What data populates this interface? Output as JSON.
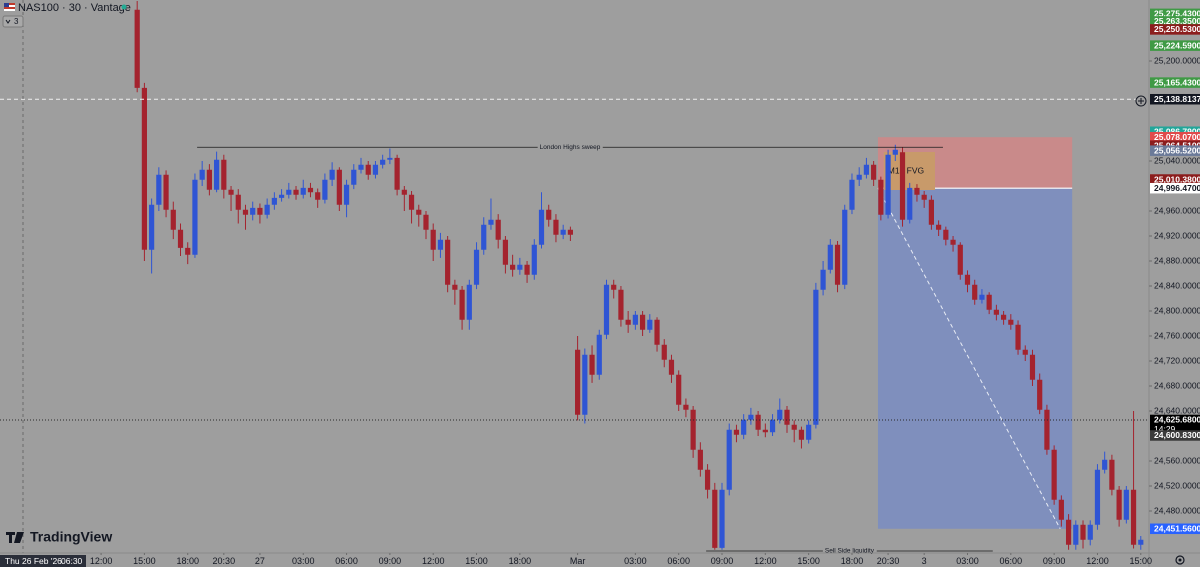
{
  "header": {
    "symbol": "NAS100 · 30 · Vantage",
    "indicator_count": "3"
  },
  "footer": {
    "cursor_date": "Thu 26 Feb '26",
    "cursor_time": "06:30",
    "brand": "TradingView"
  },
  "chart_data": {
    "type": "candlestick",
    "up_color": "#2f55d4",
    "down_color": "#a4232e",
    "xlim": [
      0,
      159
    ],
    "ylim": [
      24412.8,
      25297.6
    ],
    "xticks": [
      {
        "value": 14,
        "label": "12:00"
      },
      {
        "value": 20,
        "label": "15:00"
      },
      {
        "value": 26,
        "label": "18:00"
      },
      {
        "value": 31,
        "label": "20:30"
      },
      {
        "value": 36,
        "label": "27"
      },
      {
        "value": 42,
        "label": "03:00"
      },
      {
        "value": 48,
        "label": "06:00"
      },
      {
        "value": 54,
        "label": "09:00"
      },
      {
        "value": 60,
        "label": "12:00"
      },
      {
        "value": 66,
        "label": "15:00"
      },
      {
        "value": 72,
        "label": "18:00"
      },
      {
        "value": 80,
        "label": "Mar"
      },
      {
        "value": 88,
        "label": "03:00"
      },
      {
        "value": 94,
        "label": "06:00"
      },
      {
        "value": 100,
        "label": "09:00"
      },
      {
        "value": 106,
        "label": "12:00"
      },
      {
        "value": 112,
        "label": "15:00"
      },
      {
        "value": 118,
        "label": "18:00"
      },
      {
        "value": 123,
        "label": "20:30"
      },
      {
        "value": 128,
        "label": "3"
      },
      {
        "value": 134,
        "label": "03:00"
      },
      {
        "value": 140,
        "label": "06:00"
      },
      {
        "value": 146,
        "label": "09:00"
      },
      {
        "value": 152,
        "label": "12:00"
      },
      {
        "value": 158,
        "label": "15:00"
      }
    ],
    "yticks": [
      {
        "value": 25200,
        "label": "25,200.0000"
      },
      {
        "value": 25040,
        "label": "25,040.0000"
      },
      {
        "value": 24960,
        "label": "24,960.0000"
      },
      {
        "value": 24920,
        "label": "24,920.0000"
      },
      {
        "value": 24880,
        "label": "24,880.0000"
      },
      {
        "value": 24840,
        "label": "24,840.0000"
      },
      {
        "value": 24800,
        "label": "24,800.0000"
      },
      {
        "value": 24760,
        "label": "24,760.0000"
      },
      {
        "value": 24720,
        "label": "24,720.0000"
      },
      {
        "value": 24680,
        "label": "24,680.0000"
      },
      {
        "value": 24640,
        "label": "24,640.0000"
      },
      {
        "value": 24560,
        "label": "24,560.0000"
      },
      {
        "value": 24520,
        "label": "24,520.0000"
      },
      {
        "value": 24480,
        "label": "24,480.0000"
      }
    ],
    "x": [
      19,
      20,
      21,
      22,
      23,
      24,
      25,
      26,
      27,
      28,
      29,
      30,
      31,
      32,
      33,
      34,
      35,
      36,
      37,
      38,
      39,
      40,
      41,
      42,
      43,
      44,
      45,
      46,
      47,
      48,
      49,
      50,
      51,
      52,
      53,
      54,
      55,
      56,
      57,
      58,
      59,
      60,
      61,
      62,
      63,
      64,
      65,
      66,
      67,
      68,
      69,
      70,
      71,
      72,
      73,
      74,
      75,
      76,
      77,
      78,
      79,
      80,
      81,
      82,
      83,
      84,
      85,
      86,
      87,
      88,
      89,
      90,
      91,
      92,
      93,
      94,
      95,
      96,
      97,
      98,
      99,
      100,
      101,
      102,
      103,
      104,
      105,
      106,
      107,
      108,
      109,
      110,
      111,
      112,
      113,
      114,
      115,
      116,
      117,
      118,
      119,
      120,
      121,
      122,
      123,
      124,
      125,
      126,
      127,
      128,
      129,
      130,
      131,
      132,
      133,
      134,
      135,
      136,
      137,
      138,
      139,
      140,
      141,
      142,
      143,
      144,
      145,
      146,
      147,
      148,
      149,
      150,
      151,
      152,
      153,
      154,
      155,
      156,
      157,
      158
    ],
    "open": [
      25282,
      25157,
      24898,
      24970,
      25018,
      24962,
      24930,
      24901,
      24890,
      25010,
      25026,
      24994,
      25042,
      24994,
      24986,
      24962,
      24954,
      24965,
      24954,
      24970,
      24981,
      24986,
      24994,
      24986,
      24997,
      24990,
      24978,
      25010,
      25026,
      24970,
      25002,
      25026,
      25034,
      25018,
      25034,
      25042,
      25045,
      24994,
      24986,
      24962,
      24954,
      24930,
      24898,
      24914,
      24842,
      24834,
      24786,
      24842,
      24898,
      24938,
      24946,
      24914,
      24874,
      24866,
      24874,
      24858,
      24906,
      24962,
      24946,
      24922,
      24930,
      24738,
      24634,
      24730,
      24698,
      24762,
      24842,
      24834,
      24786,
      24778,
      24794,
      24770,
      24786,
      24746,
      24722,
      24698,
      24650,
      24642,
      24578,
      24546,
      24514,
      24421,
      24514,
      24610,
      24602,
      24626,
      24634,
      24610,
      24606,
      24626,
      24642,
      24618,
      24610,
      24594,
      24618,
      24834,
      24866,
      24906,
      24842,
      24962,
      25010,
      25018,
      25034,
      25010,
      24954,
      25050,
      25054,
      24946,
      24997,
      24986,
      24978,
      24938,
      24930,
      24914,
      24906,
      24858,
      24842,
      24818,
      24826,
      24802,
      24794,
      24786,
      24778,
      24738,
      24730,
      24690,
      24642,
      24578,
      24498,
      24466,
      24426,
      24458,
      24434,
      24458,
      24546,
      24562,
      24514,
      24466,
      24514,
      24426
    ],
    "high": [
      25296,
      25165,
      24980,
      25030,
      25025,
      24975,
      24940,
      24910,
      25020,
      25040,
      25035,
      25055,
      25050,
      25000,
      24995,
      24970,
      24975,
      24972,
      24980,
      24990,
      24995,
      25005,
      25000,
      25010,
      25005,
      24996,
      25020,
      25038,
      25030,
      25010,
      25035,
      25045,
      25040,
      25040,
      25050,
      25060,
      25050,
      25000,
      24992,
      24970,
      24960,
      24940,
      24925,
      24920,
      24850,
      24840,
      24850,
      24910,
      24950,
      24980,
      24955,
      24920,
      24890,
      24885,
      24880,
      24915,
      24990,
      24970,
      24955,
      24938,
      24935,
      24760,
      24740,
      24745,
      24770,
      24850,
      24850,
      24840,
      24800,
      24800,
      24800,
      24795,
      24790,
      24755,
      24730,
      24705,
      24660,
      24648,
      24590,
      24555,
      24525,
      24525,
      24620,
      24618,
      24635,
      24645,
      24640,
      24620,
      24635,
      24660,
      24648,
      24625,
      24615,
      24625,
      24845,
      24880,
      24915,
      24912,
      24970,
      25020,
      25030,
      25045,
      25040,
      25015,
      25058,
      25066,
      25062,
      25005,
      25003,
      24992,
      24985,
      24945,
      24935,
      24920,
      24910,
      24865,
      24850,
      24835,
      24830,
      24810,
      24800,
      24795,
      24785,
      24745,
      24738,
      24700,
      24650,
      24585,
      24505,
      24475,
      24465,
      24465,
      24465,
      24555,
      24575,
      24570,
      24520,
      24520,
      24640,
      24440
    ],
    "low": [
      25150,
      24880,
      24860,
      24960,
      24950,
      24915,
      24888,
      24875,
      24885,
      25000,
      24985,
      24990,
      24980,
      24960,
      24940,
      24930,
      24945,
      24940,
      24948,
      24962,
      24975,
      24980,
      24978,
      24980,
      24982,
      24965,
      24972,
      25000,
      24960,
      24950,
      24995,
      25020,
      25010,
      25012,
      25028,
      25035,
      24985,
      24960,
      24940,
      24935,
      24915,
      24880,
      24885,
      24830,
      24810,
      24770,
      24770,
      24835,
      24890,
      24930,
      24900,
      24860,
      24855,
      24858,
      24845,
      24850,
      24900,
      24935,
      24910,
      24915,
      24912,
      24625,
      24620,
      24685,
      24690,
      24755,
      24820,
      24775,
      24765,
      24770,
      24760,
      24765,
      24735,
      24710,
      24685,
      24640,
      24630,
      24565,
      24535,
      24500,
      24418,
      24418,
      24505,
      24590,
      24595,
      24618,
      24600,
      24598,
      24600,
      24620,
      24605,
      24590,
      24580,
      24588,
      24612,
      24825,
      24860,
      24830,
      24835,
      24955,
      25000,
      25012,
      25000,
      24945,
      24948,
      25040,
      24935,
      24940,
      24975,
      24965,
      24930,
      24920,
      24905,
      24895,
      24850,
      24830,
      24810,
      24812,
      24795,
      24785,
      24778,
      24770,
      24730,
      24720,
      24680,
      24635,
      24570,
      24490,
      24455,
      24418,
      24418,
      24420,
      24425,
      24450,
      24540,
      24505,
      24455,
      24460,
      24420,
      24418
    ],
    "close": [
      25157,
      24898,
      24970,
      25018,
      24962,
      24930,
      24901,
      24890,
      25010,
      25026,
      24994,
      25042,
      24994,
      24986,
      24962,
      24954,
      24965,
      24954,
      24970,
      24981,
      24986,
      24994,
      24986,
      24997,
      24990,
      24978,
      25010,
      25026,
      24970,
      25002,
      25026,
      25034,
      25018,
      25034,
      25042,
      25045,
      24994,
      24986,
      24962,
      24954,
      24930,
      24898,
      24914,
      24842,
      24834,
      24786,
      24842,
      24898,
      24938,
      24946,
      24914,
      24874,
      24866,
      24874,
      24858,
      24906,
      24962,
      24946,
      24922,
      24930,
      24922,
      24634,
      24730,
      24698,
      24762,
      24842,
      24834,
      24786,
      24778,
      24794,
      24770,
      24786,
      24746,
      24722,
      24698,
      24650,
      24642,
      24578,
      24546,
      24514,
      24421,
      24514,
      24610,
      24602,
      24626,
      24634,
      24610,
      24606,
      24626,
      24642,
      24618,
      24610,
      24594,
      24618,
      24834,
      24866,
      24906,
      24842,
      24962,
      25010,
      25018,
      25034,
      25010,
      24954,
      25050,
      25058,
      24946,
      24997,
      24986,
      24978,
      24938,
      24930,
      24914,
      24906,
      24858,
      24842,
      24818,
      24826,
      24802,
      24794,
      24786,
      24778,
      24738,
      24730,
      24690,
      24642,
      24578,
      24498,
      24466,
      24426,
      24458,
      24434,
      24458,
      24546,
      24562,
      24514,
      24466,
      24514,
      24426,
      24434
    ],
    "annotations": [
      {
        "text": "London Highs sweep",
        "y": 25062,
        "x": [
          27.3,
          130.6
        ]
      },
      {
        "text": "Sell Side liquidity",
        "y": 24416,
        "x": [
          97.8,
          137.5
        ]
      }
    ],
    "position": {
      "entry": 24996.47,
      "stop": 25078.07,
      "target": 24451.56,
      "x": [
        121.6,
        148.5
      ],
      "stop_color": "#c98a8a",
      "target_color": "#7f8fbd"
    },
    "zone": {
      "text": "M15 FVG",
      "y": [
        24993.6,
        25054.4
      ],
      "x": [
        122.4,
        129.5
      ],
      "color": "#c89a6a"
    },
    "price_tags": [
      {
        "value": 25275.43,
        "label": "25,275.4300",
        "color": "#3f9a45"
      },
      {
        "value": 25263.35,
        "label": "25,263.3500",
        "color": "#3f9a45"
      },
      {
        "value": 25250.53,
        "label": "25,250.5300",
        "color": "#8c1d1d"
      },
      {
        "value": 25224.59,
        "label": "25,224.5900",
        "color": "#3f9a45"
      },
      {
        "value": 25165.43,
        "label": "25,165.4300",
        "color": "#3f9a45"
      },
      {
        "value": 25138.8137,
        "label": "25,138.8137",
        "color": "#131722",
        "line": "dashed"
      },
      {
        "value": 25086.79,
        "label": "25,086.7900",
        "color": "#22a69a"
      },
      {
        "value": 25078.07,
        "label": "25,078.0700",
        "color": "#e04b4b"
      },
      {
        "value": 25064.51,
        "label": "25,064.5100",
        "color": "#8c1d1d"
      },
      {
        "value": 25056.52,
        "label": "25,056.5200",
        "color": "#6b7a99"
      },
      {
        "value": 25010.38,
        "label": "25,010.3800",
        "color": "#8c1d1d"
      },
      {
        "value": 24996.47,
        "label": "24,996.4700",
        "color": "#ffffff"
      },
      {
        "value": 24625.68,
        "label": "24,625.6800",
        "color": "#000000",
        "line": "dotted",
        "countdown": "14:29"
      },
      {
        "value": 24600.83,
        "label": "24,600.8300",
        "color": "#3a3a3a"
      },
      {
        "value": 24451.56,
        "label": "24,451.5600",
        "color": "#2962ff"
      }
    ]
  }
}
